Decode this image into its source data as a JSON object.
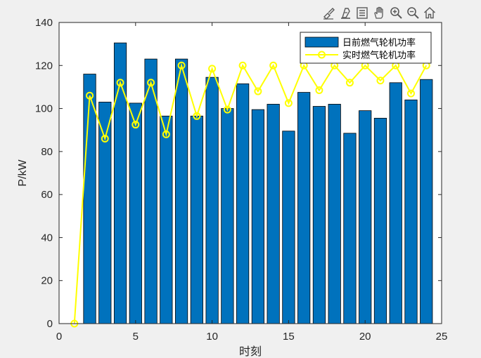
{
  "toolbar": {
    "buttons": [
      {
        "name": "brush-icon"
      },
      {
        "name": "datatip-icon"
      },
      {
        "name": "legend-toggle-icon"
      },
      {
        "name": "pan-hand-icon"
      },
      {
        "name": "zoom-in-icon"
      },
      {
        "name": "zoom-out-icon"
      },
      {
        "name": "home-icon"
      }
    ],
    "icon_color": "#5a5a5a"
  },
  "chart_data": {
    "type": "bar",
    "title": "",
    "xlabel": "时刻",
    "ylabel": "P/kW",
    "xlim": [
      0,
      25
    ],
    "ylim": [
      0,
      140
    ],
    "xticks": [
      0,
      5,
      10,
      15,
      20,
      25
    ],
    "yticks": [
      0,
      20,
      40,
      60,
      80,
      100,
      120,
      140
    ],
    "grid": false,
    "legend_position": "top-right",
    "series": [
      {
        "name": "日前燃气轮机功率",
        "type": "bar",
        "color": "#0072bd",
        "x": [
          2,
          3,
          4,
          5,
          6,
          7,
          8,
          9,
          10,
          11,
          12,
          13,
          14,
          15,
          16,
          17,
          18,
          19,
          20,
          21,
          22,
          23,
          24
        ],
        "values": [
          116,
          103,
          130.5,
          102.5,
          123,
          96.5,
          123,
          96.5,
          114.5,
          100,
          111.5,
          99.5,
          102,
          89.5,
          107.5,
          101,
          102,
          88.5,
          99,
          95.5,
          112,
          104,
          113.5
        ]
      },
      {
        "name": "实时燃气轮机功率",
        "type": "line",
        "color": "#ffff00",
        "x": [
          1,
          2,
          3,
          4,
          5,
          6,
          7,
          8,
          9,
          10,
          11,
          12,
          13,
          14,
          15,
          16,
          17,
          18,
          19,
          20,
          21,
          22,
          23,
          24
        ],
        "values": [
          0,
          106,
          86,
          112,
          92.5,
          112,
          88,
          120,
          96.5,
          118.5,
          99.5,
          120,
          108,
          120,
          102.5,
          120,
          108.5,
          120,
          112,
          120,
          113,
          120,
          107,
          120
        ]
      }
    ]
  }
}
